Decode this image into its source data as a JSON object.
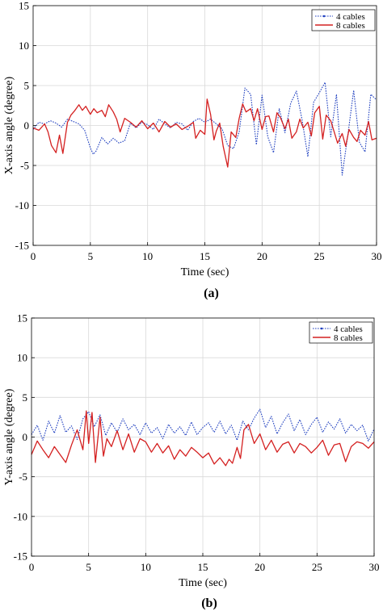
{
  "chart_data": [
    {
      "type": "line",
      "caption": "(a)",
      "xlabel": "Time (sec)",
      "ylabel": "X-axis angle (degree)",
      "xlim": [
        0,
        30
      ],
      "ylim": [
        -15,
        15
      ],
      "xticks": [
        0,
        5,
        10,
        15,
        20,
        25,
        30
      ],
      "yticks": [
        15,
        10,
        5,
        0,
        -5,
        -10,
        -15
      ],
      "grid": true,
      "legend_position": "top-right",
      "series": [
        {
          "name": "4 cables",
          "color": "#1f3fbf",
          "style": "dotted",
          "x": [
            0,
            0.5,
            1,
            1.5,
            2,
            2.5,
            3,
            3.5,
            4,
            4.5,
            5,
            5.25,
            5.5,
            6,
            6.5,
            7,
            7.5,
            8,
            8.5,
            9,
            9.5,
            10,
            10.5,
            11,
            11.5,
            12,
            12.5,
            13,
            13.5,
            14,
            14.5,
            15,
            15.5,
            16,
            16.5,
            17,
            17.5,
            18,
            18.5,
            19,
            19.5,
            20,
            20.5,
            21,
            21.5,
            22,
            22.5,
            23,
            23.5,
            24,
            24.5,
            25,
            25.5,
            26,
            26.5,
            27,
            27.5,
            28,
            28.5,
            29,
            29.5,
            30
          ],
          "y": [
            -0.5,
            0.4,
            0.2,
            0.6,
            0.3,
            -0.2,
            0.8,
            0.5,
            0.2,
            -0.6,
            -2.8,
            -3.6,
            -3.2,
            -1.5,
            -2.3,
            -1.6,
            -2.2,
            -1.9,
            0.3,
            -0.3,
            0.4,
            0.1,
            -0.5,
            0.8,
            0.2,
            -0.3,
            0.4,
            0.2,
            -0.6,
            0.5,
            0.9,
            0.4,
            0.8,
            0.2,
            -0.4,
            -2.5,
            -2.9,
            -0.8,
            4.7,
            3.9,
            -2.4,
            3.8,
            -1.4,
            -3.4,
            2.1,
            -0.9,
            2.8,
            4.3,
            0.7,
            -3.9,
            2.9,
            4.1,
            5.4,
            -1.4,
            3.9,
            -6.2,
            -1.1,
            4.4,
            -2.1,
            -3.3,
            3.9,
            3.2
          ]
        },
        {
          "name": "8 cables",
          "color": "#d42020",
          "style": "solid",
          "x": [
            0,
            0.5,
            1,
            1.3,
            1.6,
            2,
            2.3,
            2.6,
            3,
            3.3,
            3.6,
            4,
            4.3,
            4.6,
            5,
            5.3,
            5.6,
            6,
            6.3,
            6.6,
            7,
            7.3,
            7.6,
            8,
            8.5,
            9,
            9.5,
            10,
            10.5,
            11,
            11.5,
            12,
            12.5,
            13,
            13.5,
            14,
            14.2,
            14.6,
            15,
            15.2,
            15.5,
            15.8,
            16,
            16.3,
            16.6,
            17,
            17.3,
            17.7,
            18,
            18.3,
            18.6,
            19,
            19.3,
            19.6,
            20,
            20.3,
            20.6,
            21,
            21.3,
            21.6,
            22,
            22.3,
            22.6,
            23,
            23.3,
            23.6,
            24,
            24.3,
            24.6,
            25,
            25.3,
            25.6,
            26,
            26.3,
            26.6,
            27,
            27.3,
            27.6,
            28,
            28.3,
            28.6,
            29,
            29.3,
            29.6,
            30
          ],
          "y": [
            -0.3,
            -0.6,
            0.2,
            -0.8,
            -2.5,
            -3.4,
            -1.2,
            -3.5,
            0.4,
            1.3,
            1.8,
            2.6,
            1.9,
            2.4,
            1.4,
            2.1,
            1.6,
            1.9,
            1.1,
            2.6,
            1.7,
            0.8,
            -0.8,
            0.9,
            0.4,
            -0.2,
            0.6,
            -0.4,
            0.3,
            -0.8,
            0.5,
            -0.2,
            0.2,
            -0.5,
            -0.1,
            0.4,
            -1.6,
            -0.6,
            -1.1,
            3.3,
            1.4,
            -1.8,
            -0.7,
            0.3,
            -2.6,
            -5.2,
            -0.8,
            -1.5,
            0.9,
            2.7,
            1.7,
            2.1,
            0.6,
            2.1,
            -0.5,
            1.1,
            1.2,
            -0.8,
            1.6,
            1.0,
            -0.4,
            0.8,
            -1.6,
            -0.8,
            0.8,
            -0.3,
            0.4,
            -1.3,
            1.6,
            2.4,
            -1.7,
            1.3,
            0.6,
            -0.8,
            -2.2,
            -1.0,
            -2.6,
            -0.5,
            -1.5,
            -2.0,
            -0.6,
            -1.2,
            0.5,
            -1.8,
            -1.6
          ]
        }
      ]
    },
    {
      "type": "line",
      "caption": "(b)",
      "xlabel": "Time (sec)",
      "ylabel": "Y-axis angle (degree)",
      "xlim": [
        0,
        30
      ],
      "ylim": [
        -15,
        15
      ],
      "xticks": [
        0,
        5,
        10,
        15,
        20,
        25,
        30
      ],
      "yticks": [
        15,
        10,
        5,
        0,
        -5,
        -10,
        -15
      ],
      "grid": true,
      "legend_position": "top-right",
      "series": [
        {
          "name": "4 cables",
          "color": "#1f3fbf",
          "style": "dotted",
          "x": [
            0,
            0.5,
            1,
            1.5,
            2,
            2.5,
            3,
            3.5,
            4,
            4.5,
            5,
            5.5,
            6,
            6.5,
            7,
            7.5,
            8,
            8.5,
            9,
            9.5,
            10,
            10.5,
            11,
            11.5,
            12,
            12.5,
            13,
            13.5,
            14,
            14.5,
            15,
            15.5,
            16,
            16.5,
            17,
            17.5,
            18,
            18.5,
            19,
            19.5,
            20,
            20.5,
            21,
            21.5,
            22,
            22.5,
            23,
            23.5,
            24,
            24.5,
            25,
            25.5,
            26,
            26.5,
            27,
            27.5,
            28,
            28.5,
            29,
            29.5,
            30
          ],
          "y": [
            0.3,
            1.5,
            -0.4,
            2.0,
            0.5,
            2.7,
            0.6,
            1.4,
            -0.3,
            2.3,
            3.2,
            1.3,
            2.8,
            0.2,
            1.8,
            0.6,
            2.3,
            0.9,
            1.6,
            0.3,
            1.8,
            0.5,
            1.2,
            -0.2,
            1.6,
            0.5,
            1.3,
            0.2,
            1.9,
            0.3,
            1.2,
            1.8,
            0.6,
            2.0,
            0.4,
            1.5,
            -0.4,
            2.0,
            0.9,
            2.4,
            3.5,
            1.2,
            2.6,
            0.4,
            1.8,
            2.9,
            0.8,
            2.2,
            0.3,
            1.6,
            2.5,
            0.6,
            1.9,
            1.0,
            2.3,
            0.5,
            1.6,
            0.8,
            1.5,
            -0.5,
            1.0
          ]
        },
        {
          "name": "8 cables",
          "color": "#d42020",
          "style": "solid",
          "x": [
            0,
            0.5,
            1,
            1.5,
            2,
            2.5,
            3,
            3.5,
            4,
            4.5,
            4.8,
            5,
            5.3,
            5.6,
            6,
            6.3,
            6.6,
            7,
            7.5,
            8,
            8.5,
            9,
            9.5,
            10,
            10.5,
            11,
            11.5,
            12,
            12.5,
            13,
            13.5,
            14,
            14.5,
            15,
            15.5,
            16,
            16.5,
            17,
            17.3,
            17.6,
            18,
            18.3,
            18.6,
            19,
            19.5,
            20,
            20.5,
            21,
            21.5,
            22,
            22.5,
            23,
            23.5,
            24,
            24.5,
            25,
            25.5,
            26,
            26.5,
            27,
            27.5,
            28,
            28.5,
            29,
            29.5,
            30
          ],
          "y": [
            -2.2,
            -0.5,
            -1.6,
            -2.6,
            -1.2,
            -2.2,
            -3.2,
            -1.0,
            0.9,
            -1.6,
            3.3,
            -0.8,
            3.1,
            -3.2,
            2.5,
            -2.4,
            -0.2,
            -1.2,
            0.8,
            -1.6,
            0.4,
            -1.9,
            -0.2,
            -0.6,
            -1.9,
            -0.8,
            -2.0,
            -1.1,
            -2.8,
            -1.6,
            -2.4,
            -1.3,
            -1.9,
            -2.6,
            -2.0,
            -3.4,
            -2.6,
            -3.6,
            -2.8,
            -3.3,
            -1.3,
            -2.7,
            0.9,
            1.6,
            -0.8,
            0.4,
            -1.6,
            -0.4,
            -1.9,
            -0.9,
            -0.6,
            -2.0,
            -0.8,
            -1.2,
            -2.0,
            -1.3,
            -0.4,
            -2.3,
            -1.0,
            -0.8,
            -3.1,
            -1.2,
            -0.6,
            -0.8,
            -1.4,
            -0.6
          ]
        }
      ]
    }
  ]
}
